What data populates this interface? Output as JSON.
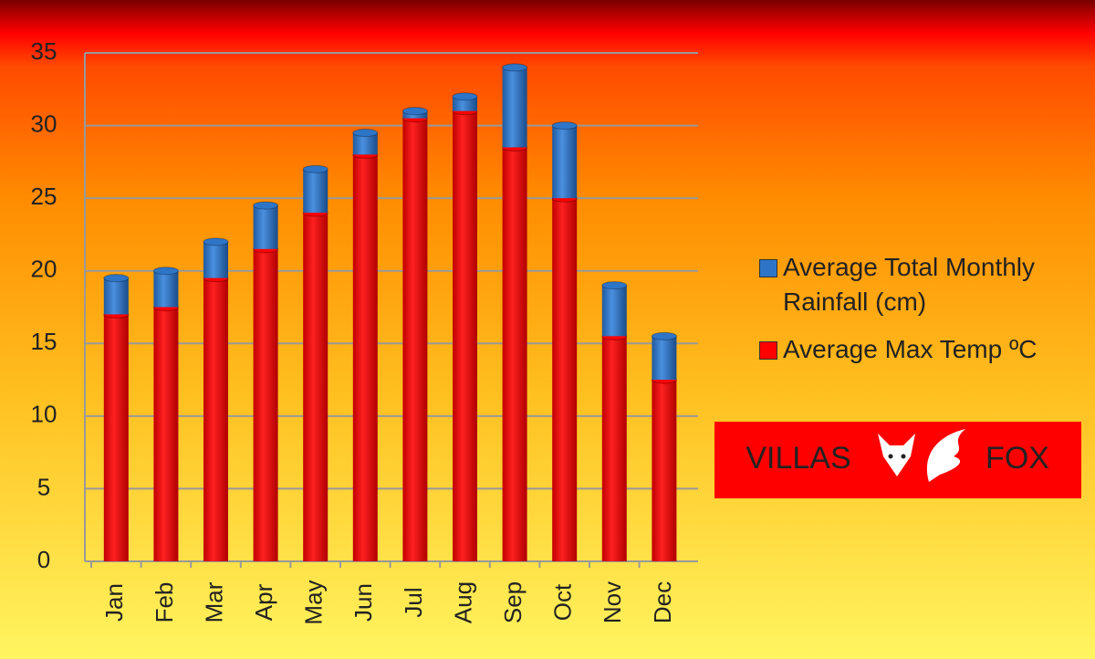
{
  "chart_data": {
    "type": "stacked-bar",
    "categories": [
      "Jan",
      "Feb",
      "Mar",
      "Apr",
      "May",
      "Jun",
      "Jul",
      "Aug",
      "Sep",
      "Oct",
      "Nov",
      "Dec"
    ],
    "series": [
      {
        "name": "Average Max Temp ºC",
        "color": "#ff0000",
        "values": [
          17,
          17.5,
          19.5,
          21.5,
          24,
          28,
          30.5,
          31,
          28.5,
          25,
          15.5,
          12.5
        ]
      },
      {
        "name": "Average Total Monthly Rainfall (cm)",
        "color": "#2e75c8",
        "values": [
          2.5,
          2.5,
          2.5,
          3,
          3,
          1.5,
          0.5,
          1,
          5.5,
          5,
          3.5,
          3
        ]
      }
    ],
    "ylim": [
      0,
      35
    ],
    "yticks": [
      0,
      5,
      10,
      15,
      20,
      25,
      30,
      35
    ],
    "grid": true,
    "legend": "right"
  },
  "logo": {
    "left": "VILLAS",
    "right": "FOX"
  }
}
